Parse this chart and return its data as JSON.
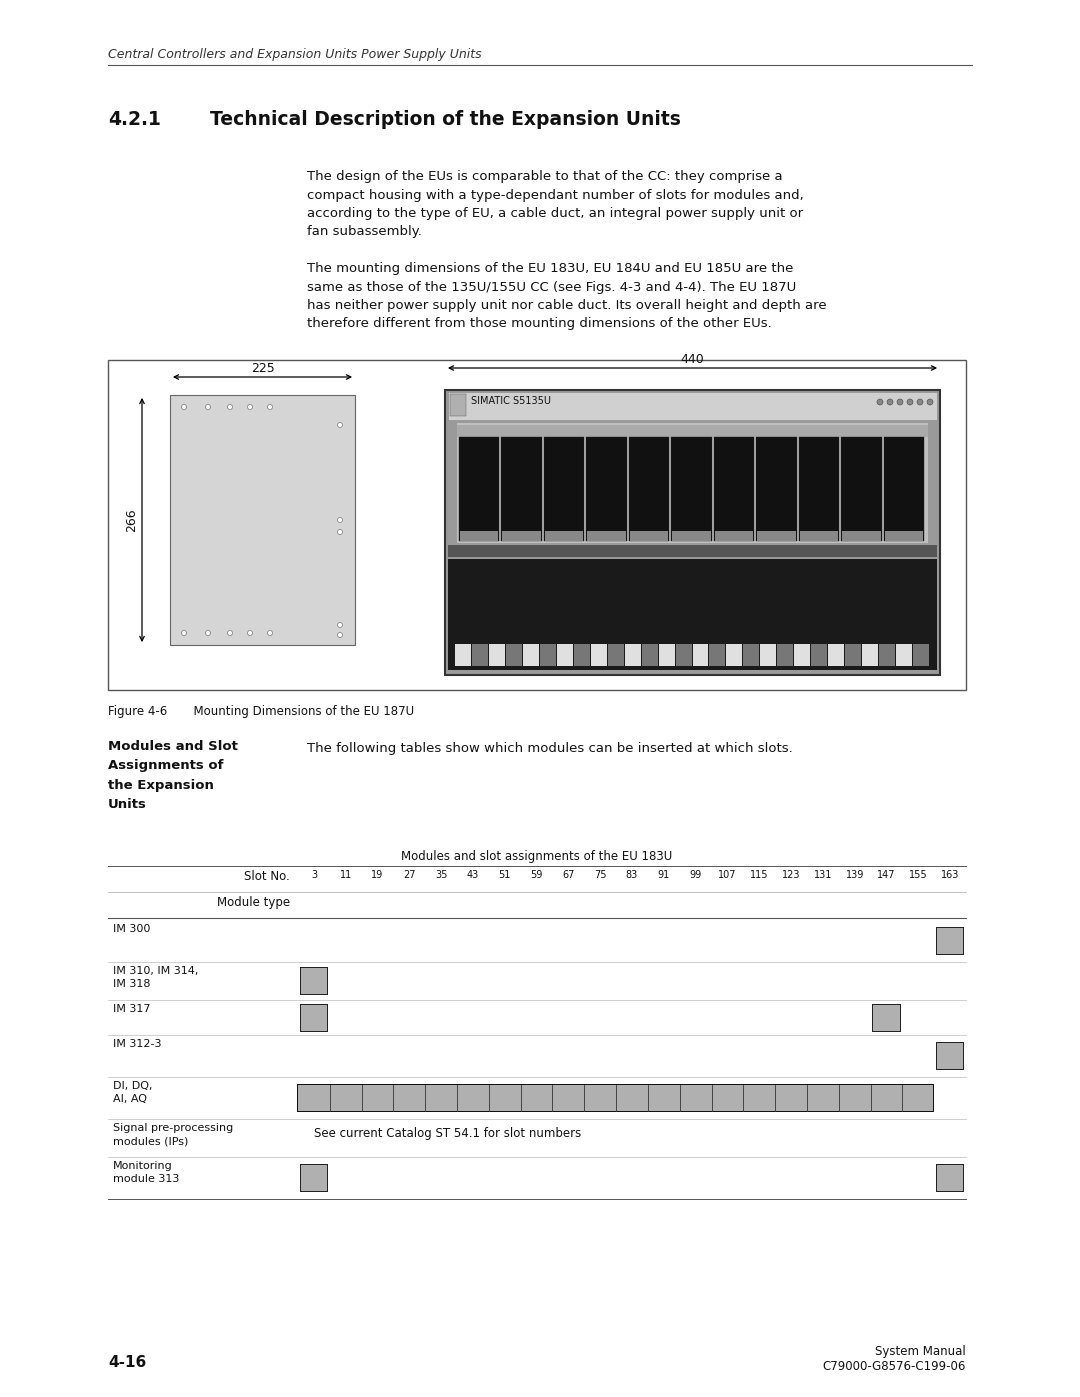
{
  "page_header": "Central Controllers and Expansion Units Power Supply Units",
  "section_num": "4.2.1",
  "section_title": "Technical Description of the Expansion Units",
  "body_text_1": "The design of the EUs is comparable to that of the CC: they comprise a\ncompact housing with a type-dependant number of slots for modules and,\naccording to the type of EU, a cable duct, an integral power supply unit or\nfan subassembly.",
  "body_text_2": "The mounting dimensions of the EU 183U, EU 184U and EU 185U are the\nsame as those of the 135U/155U CC (see Figs. 4-3 and 4-4). The EU 187U\nhas neither power supply unit nor cable duct. Its overall height and depth are\ntherefore different from those mounting dimensions of the other EUs.",
  "figure_caption": "Figure 4-6       Mounting Dimensions of the EU 187U",
  "bold_heading": "Modules and Slot\nAssignments of\nthe Expansion\nUnits",
  "intro_text": "The following tables show which modules can be inserted at which slots.",
  "table_title": "Modules and slot assignments of the EU 183U",
  "slot_label": "Slot No.",
  "module_label": "Module type",
  "slot_numbers": [
    "3",
    "11",
    "19",
    "27",
    "35",
    "43",
    "51",
    "59",
    "67",
    "75",
    "83",
    "91",
    "99",
    "107",
    "115",
    "123",
    "131",
    "139",
    "147",
    "155",
    "163"
  ],
  "footer_left": "4-16",
  "footer_right_top": "System Manual",
  "footer_right_bottom": "C79000-G8576-C199-06",
  "bg_color": "#ffffff",
  "box_fill": "#b0b0b0",
  "line_color": "#000000",
  "dim_225": "225",
  "dim_440": "440",
  "dim_266": "266",
  "simatic_label": "SIMATIC S5135U"
}
